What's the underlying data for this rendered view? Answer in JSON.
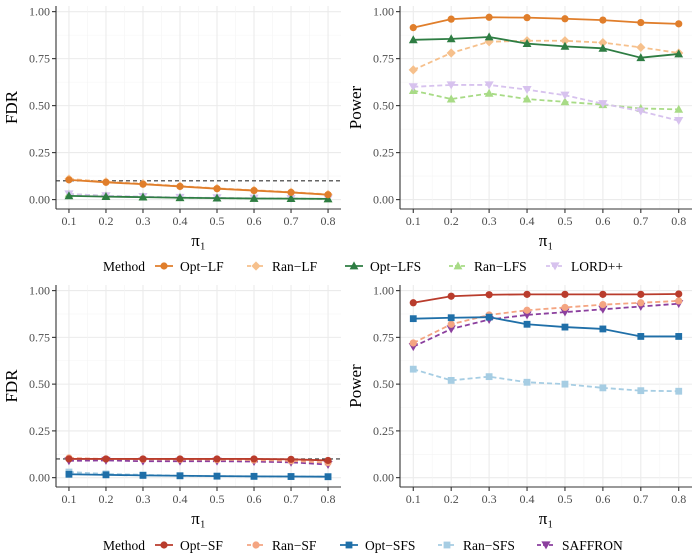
{
  "legends": [
    {
      "title": "Method",
      "entries": [
        {
          "label": "Opt−LF",
          "color": "#e07e2b",
          "marker": "circle",
          "dashed": false,
          "faded": false
        },
        {
          "label": "Ran−LF",
          "color": "#f6c08c",
          "marker": "diamond",
          "dashed": true,
          "faded": true
        },
        {
          "label": "Opt−LFS",
          "color": "#2e7d43",
          "marker": "triangle-up",
          "dashed": false,
          "faded": false
        },
        {
          "label": "Ran−LFS",
          "color": "#a8db86",
          "marker": "triangle-up",
          "dashed": true,
          "faded": true
        },
        {
          "label": "LORD++",
          "color": "#d7c2ee",
          "marker": "triangle-down",
          "dashed": true,
          "faded": true
        }
      ]
    },
    {
      "title": "Method",
      "entries": [
        {
          "label": "Opt−SF",
          "color": "#b93c2c",
          "marker": "circle",
          "dashed": false,
          "faded": false
        },
        {
          "label": "Ran−SF",
          "color": "#f4a582",
          "marker": "circle",
          "dashed": true,
          "faded": true
        },
        {
          "label": "Opt−SFS",
          "color": "#1f6fa8",
          "marker": "square",
          "dashed": false,
          "faded": false
        },
        {
          "label": "Ran−SFS",
          "color": "#a6cde3",
          "marker": "square",
          "dashed": true,
          "faded": true
        },
        {
          "label": "SAFFRON",
          "color": "#8b3f9e",
          "marker": "triangle-down",
          "dashed": true,
          "faded": false
        }
      ]
    }
  ],
  "chart_data": [
    {
      "type": "line",
      "id": "top-fdr",
      "xlabel": "π₁",
      "ylabel": "FDR",
      "x": [
        0.1,
        0.2,
        0.3,
        0.4,
        0.5,
        0.6,
        0.7,
        0.8
      ],
      "xticks": [
        "0.1",
        "0.2",
        "0.3",
        "0.4",
        "0.5",
        "0.6",
        "0.7",
        "0.8"
      ],
      "ylim": [
        -0.05,
        1.03
      ],
      "yticks": [
        "0.00",
        "0.25",
        "0.50",
        "0.75",
        "1.00"
      ],
      "hline": 0.1,
      "series": [
        {
          "name": "Ran−LFS",
          "values": [
            0.03,
            0.02,
            0.015,
            0.01,
            0.008,
            0.006,
            0.005,
            0.003
          ]
        },
        {
          "name": "LORD++",
          "values": [
            0.03,
            0.02,
            0.016,
            0.011,
            0.009,
            0.007,
            0.005,
            0.004
          ]
        },
        {
          "name": "Ran−LF",
          "values": [
            0.11,
            0.095,
            0.085,
            0.072,
            0.06,
            0.05,
            0.04,
            0.028
          ]
        },
        {
          "name": "Opt−LFS",
          "values": [
            0.02,
            0.016,
            0.013,
            0.01,
            0.008,
            0.006,
            0.005,
            0.004
          ]
        },
        {
          "name": "Opt−LF",
          "values": [
            0.105,
            0.092,
            0.082,
            0.07,
            0.058,
            0.048,
            0.038,
            0.026
          ]
        }
      ]
    },
    {
      "type": "line",
      "id": "top-power",
      "xlabel": "π₁",
      "ylabel": "Power",
      "x": [
        0.1,
        0.2,
        0.3,
        0.4,
        0.5,
        0.6,
        0.7,
        0.8
      ],
      "xticks": [
        "0.1",
        "0.2",
        "0.3",
        "0.4",
        "0.5",
        "0.6",
        "0.7",
        "0.8"
      ],
      "ylim": [
        -0.05,
        1.03
      ],
      "yticks": [
        "0.00",
        "0.25",
        "0.50",
        "0.75",
        "1.00"
      ],
      "series": [
        {
          "name": "Ran−LFS",
          "values": [
            0.58,
            0.535,
            0.565,
            0.535,
            0.52,
            0.505,
            0.485,
            0.48
          ]
        },
        {
          "name": "LORD++",
          "values": [
            0.6,
            0.61,
            0.61,
            0.585,
            0.555,
            0.51,
            0.47,
            0.42
          ]
        },
        {
          "name": "Ran−LF",
          "values": [
            0.69,
            0.78,
            0.84,
            0.845,
            0.845,
            0.835,
            0.81,
            0.78
          ]
        },
        {
          "name": "Opt−LFS",
          "values": [
            0.85,
            0.855,
            0.865,
            0.83,
            0.815,
            0.805,
            0.755,
            0.775
          ]
        },
        {
          "name": "Opt−LF",
          "values": [
            0.915,
            0.96,
            0.97,
            0.968,
            0.962,
            0.955,
            0.942,
            0.935
          ]
        }
      ]
    },
    {
      "type": "line",
      "id": "bottom-fdr",
      "xlabel": "π₁",
      "ylabel": "FDR",
      "x": [
        0.1,
        0.2,
        0.3,
        0.4,
        0.5,
        0.6,
        0.7,
        0.8
      ],
      "xticks": [
        "0.1",
        "0.2",
        "0.3",
        "0.4",
        "0.5",
        "0.6",
        "0.7",
        "0.8"
      ],
      "ylim": [
        -0.05,
        1.03
      ],
      "yticks": [
        "0.00",
        "0.25",
        "0.50",
        "0.75",
        "1.00"
      ],
      "hline": 0.1,
      "series": [
        {
          "name": "Ran−SFS",
          "values": [
            0.03,
            0.02,
            0.015,
            0.01,
            0.008,
            0.007,
            0.006,
            0.005
          ]
        },
        {
          "name": "SAFFRON",
          "values": [
            0.09,
            0.092,
            0.088,
            0.088,
            0.088,
            0.086,
            0.082,
            0.07
          ]
        },
        {
          "name": "Ran−SF",
          "values": [
            0.105,
            0.1,
            0.098,
            0.097,
            0.096,
            0.094,
            0.09,
            0.08
          ]
        },
        {
          "name": "Opt−SFS",
          "values": [
            0.018,
            0.015,
            0.012,
            0.01,
            0.008,
            0.007,
            0.006,
            0.005
          ]
        },
        {
          "name": "Opt−SF",
          "values": [
            0.1,
            0.1,
            0.1,
            0.1,
            0.1,
            0.1,
            0.098,
            0.092
          ]
        }
      ]
    },
    {
      "type": "line",
      "id": "bottom-power",
      "xlabel": "π₁",
      "ylabel": "Power",
      "x": [
        0.1,
        0.2,
        0.3,
        0.4,
        0.5,
        0.6,
        0.7,
        0.8
      ],
      "xticks": [
        "0.1",
        "0.2",
        "0.3",
        "0.4",
        "0.5",
        "0.6",
        "0.7",
        "0.8"
      ],
      "ylim": [
        -0.05,
        1.03
      ],
      "yticks": [
        "0.00",
        "0.25",
        "0.50",
        "0.75",
        "1.00"
      ],
      "series": [
        {
          "name": "Ran−SFS",
          "values": [
            0.58,
            0.52,
            0.54,
            0.51,
            0.5,
            0.48,
            0.465,
            0.462
          ]
        },
        {
          "name": "SAFFRON",
          "values": [
            0.7,
            0.795,
            0.845,
            0.87,
            0.885,
            0.9,
            0.915,
            0.93
          ]
        },
        {
          "name": "Ran−SF",
          "values": [
            0.72,
            0.82,
            0.87,
            0.895,
            0.91,
            0.925,
            0.935,
            0.945
          ]
        },
        {
          "name": "Opt−SFS",
          "values": [
            0.85,
            0.855,
            0.858,
            0.82,
            0.805,
            0.795,
            0.755,
            0.755
          ]
        },
        {
          "name": "Opt−SF",
          "values": [
            0.935,
            0.97,
            0.978,
            0.98,
            0.98,
            0.98,
            0.98,
            0.982
          ]
        }
      ]
    }
  ]
}
